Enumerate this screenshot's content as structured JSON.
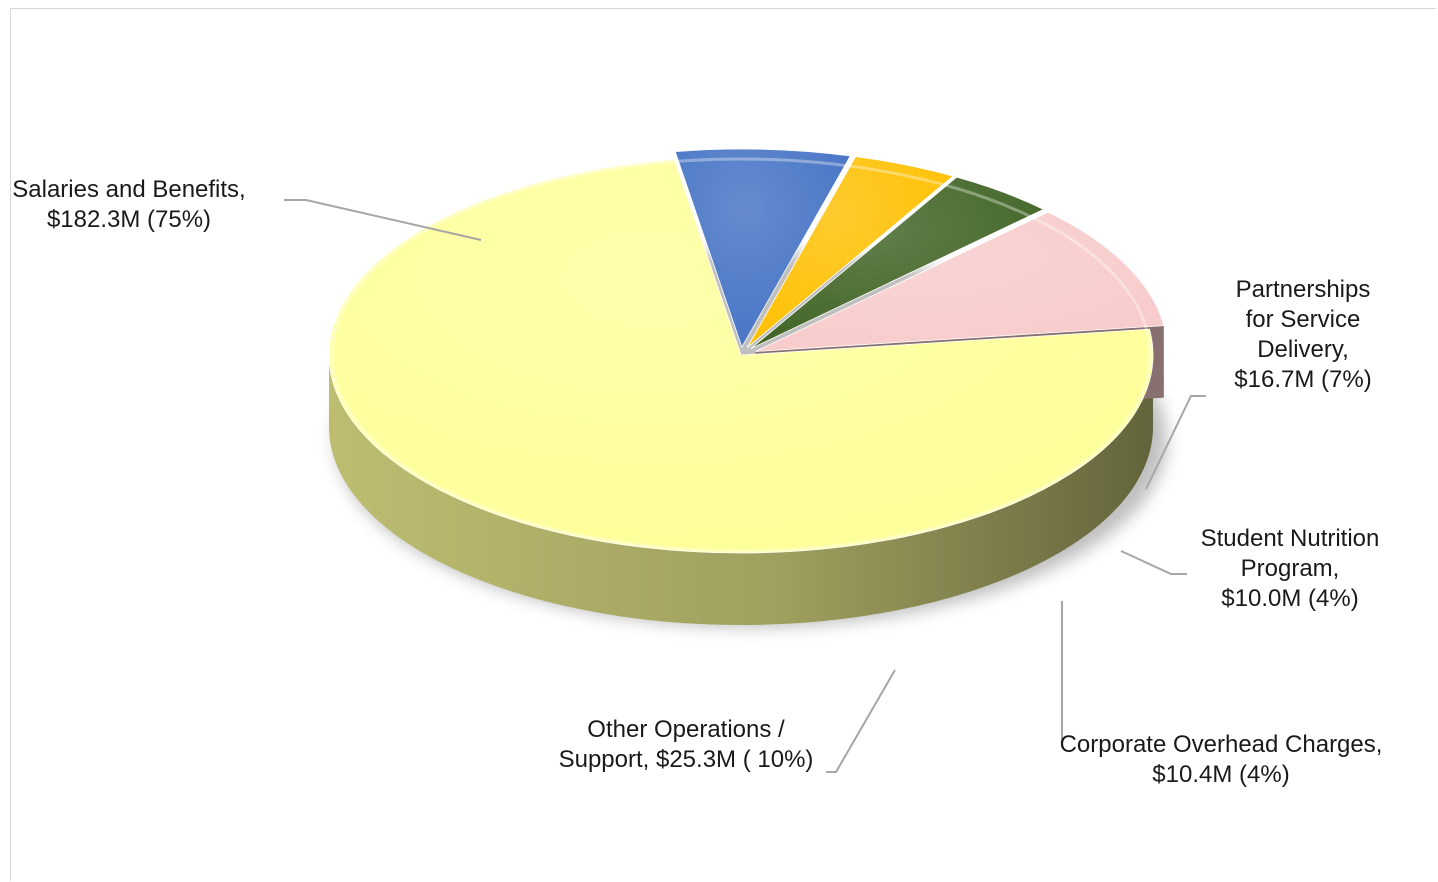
{
  "chart_data": {
    "type": "pie",
    "style": "3d",
    "title": "",
    "slices": [
      {
        "name": "Salaries and Benefits",
        "value": 182.3,
        "percent": 75,
        "label_lines": [
          "Salaries and Benefits,",
          "$182.3M (75%)"
        ],
        "color": "#FFFF99"
      },
      {
        "name": "Partnerships for Service Delivery",
        "value": 16.7,
        "percent": 7,
        "label_lines": [
          "Partnerships",
          "for Service",
          "Delivery,",
          "$16.7M (7%)"
        ],
        "color": "#4472C4"
      },
      {
        "name": "Student Nutrition Program",
        "value": 10.0,
        "percent": 4,
        "label_lines": [
          "Student Nutrition",
          "Program,",
          "$10.0M (4%)"
        ],
        "color": "#FFC000"
      },
      {
        "name": "Corporate Overhead Charges",
        "value": 10.4,
        "percent": 4,
        "label_lines": [
          "Corporate Overhead Charges,",
          "$10.4M (4%)"
        ],
        "color": "#3F6323"
      },
      {
        "name": "Other Operations / Support",
        "value": 25.3,
        "percent": 10,
        "label_lines": [
          "Other Operations /",
          "Support, $25.3M ( 10%)"
        ],
        "color": "#F8CBCB"
      }
    ],
    "legend": "none",
    "data_labels": "outside with leader lines"
  }
}
